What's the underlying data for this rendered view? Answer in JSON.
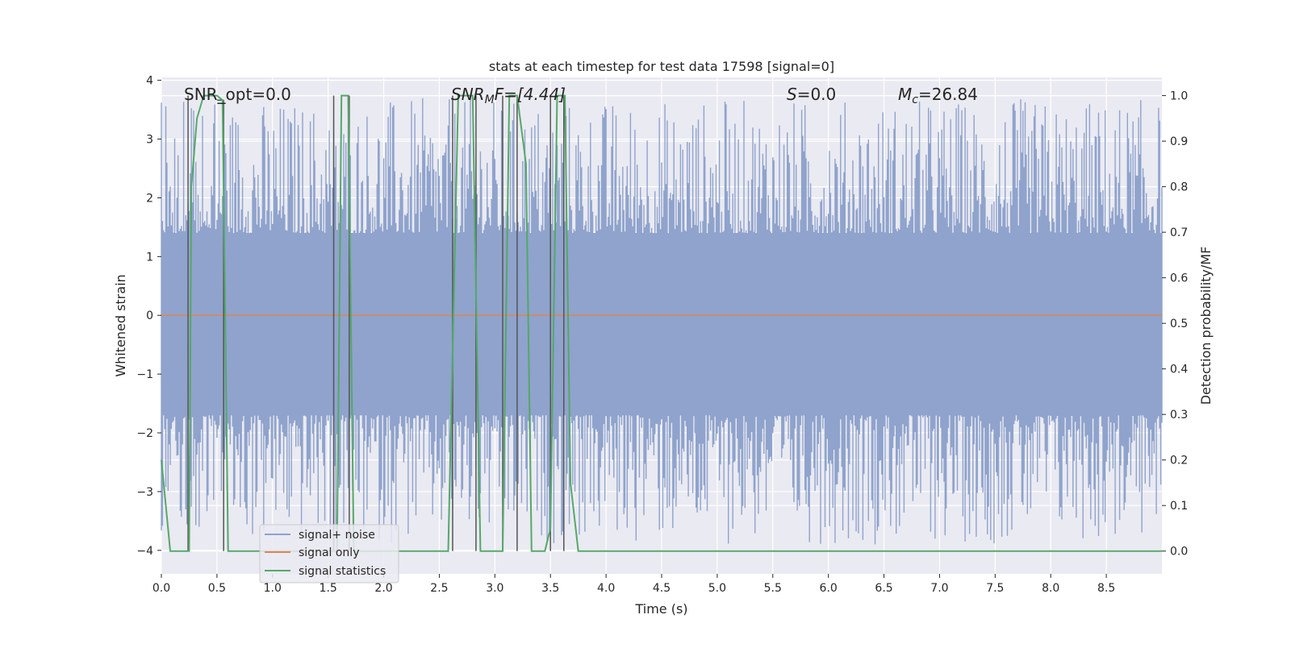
{
  "chart_data": {
    "type": "line",
    "title": "stats at each timestep for test data 17598 [signal=0]",
    "xlabel": "Time (s)",
    "ylabel": "Whitened strain",
    "y2label": "Detection probability/MF",
    "xlim": [
      0.0,
      9.0
    ],
    "ylim": [
      -4.4,
      4.05
    ],
    "y2lim": [
      -0.05,
      1.04
    ],
    "xticks": [
      0.0,
      0.5,
      1.0,
      1.5,
      2.0,
      2.5,
      3.0,
      3.5,
      4.0,
      4.5,
      5.0,
      5.5,
      6.0,
      6.5,
      7.0,
      7.5,
      8.0,
      8.5
    ],
    "yticks": [
      4,
      3,
      2,
      1,
      0,
      -1,
      -2,
      -3,
      -4
    ],
    "y2ticks": [
      1.0,
      0.9,
      0.8,
      0.7,
      0.6,
      0.5,
      0.4,
      0.3,
      0.2,
      0.1,
      0.0
    ],
    "grid": true,
    "legend_position": "lower-left",
    "annotations": {
      "snr_opt": "SNR_opt=0.0",
      "snr_mf_base": "SNR",
      "snr_mf_sub": "M",
      "snr_mf_rest": "F=[4.44]",
      "s_base": "S",
      "s_rest": "=0.0",
      "mc_base": "M",
      "mc_sub": "c",
      "mc_rest": "=26.84"
    },
    "series": [
      {
        "name": "signal+ noise",
        "color": "#8fa3cc",
        "noise_band": [
          -1.7,
          1.4
        ],
        "peak_range": [
          -3.9,
          3.7
        ]
      },
      {
        "name": "signal only",
        "color": "#dd8452",
        "constant": 0.0
      },
      {
        "name": "signal statistics",
        "color": "#55a868",
        "axis": "right",
        "points": [
          [
            0.0,
            0.2
          ],
          [
            0.08,
            0.0
          ],
          [
            0.25,
            0.0
          ],
          [
            0.27,
            0.8
          ],
          [
            0.32,
            0.95
          ],
          [
            0.38,
            1.0
          ],
          [
            0.5,
            1.0
          ],
          [
            0.55,
            0.99
          ],
          [
            0.6,
            0.0
          ],
          [
            0.62,
            0.0
          ],
          [
            1.55,
            0.0
          ],
          [
            1.58,
            0.0
          ],
          [
            1.62,
            1.0
          ],
          [
            1.68,
            1.0
          ],
          [
            1.73,
            0.0
          ],
          [
            2.58,
            0.0
          ],
          [
            2.67,
            1.0
          ],
          [
            2.8,
            1.0
          ],
          [
            2.87,
            0.0
          ],
          [
            3.07,
            0.0
          ],
          [
            3.13,
            1.0
          ],
          [
            3.2,
            1.0
          ],
          [
            3.28,
            0.85
          ],
          [
            3.33,
            0.0
          ],
          [
            3.45,
            0.0
          ],
          [
            3.5,
            0.05
          ],
          [
            3.56,
            1.0
          ],
          [
            3.63,
            1.0
          ],
          [
            3.68,
            0.15
          ],
          [
            3.75,
            0.0
          ],
          [
            9.0,
            0.0
          ]
        ]
      }
    ],
    "markers": {
      "color": "#555555",
      "lines": [
        [
          0.24,
          0.0,
          1.0
        ],
        [
          0.56,
          0.0,
          0.99
        ],
        [
          1.55,
          0.0,
          1.0
        ],
        [
          1.69,
          0.0,
          1.0
        ],
        [
          2.62,
          0.0,
          1.0
        ],
        [
          2.83,
          0.0,
          1.0
        ],
        [
          3.07,
          0.0,
          1.0
        ],
        [
          3.2,
          0.0,
          1.0
        ],
        [
          3.5,
          0.0,
          1.0
        ],
        [
          3.62,
          0.0,
          1.0
        ]
      ],
      "tick_marks": [
        [
          0.5,
          0.99
        ],
        [
          0.56,
          0.99
        ]
      ]
    }
  },
  "colors": {
    "axes_bg": "#eaeaf2",
    "grid": "#ffffff",
    "text": "#262626"
  }
}
